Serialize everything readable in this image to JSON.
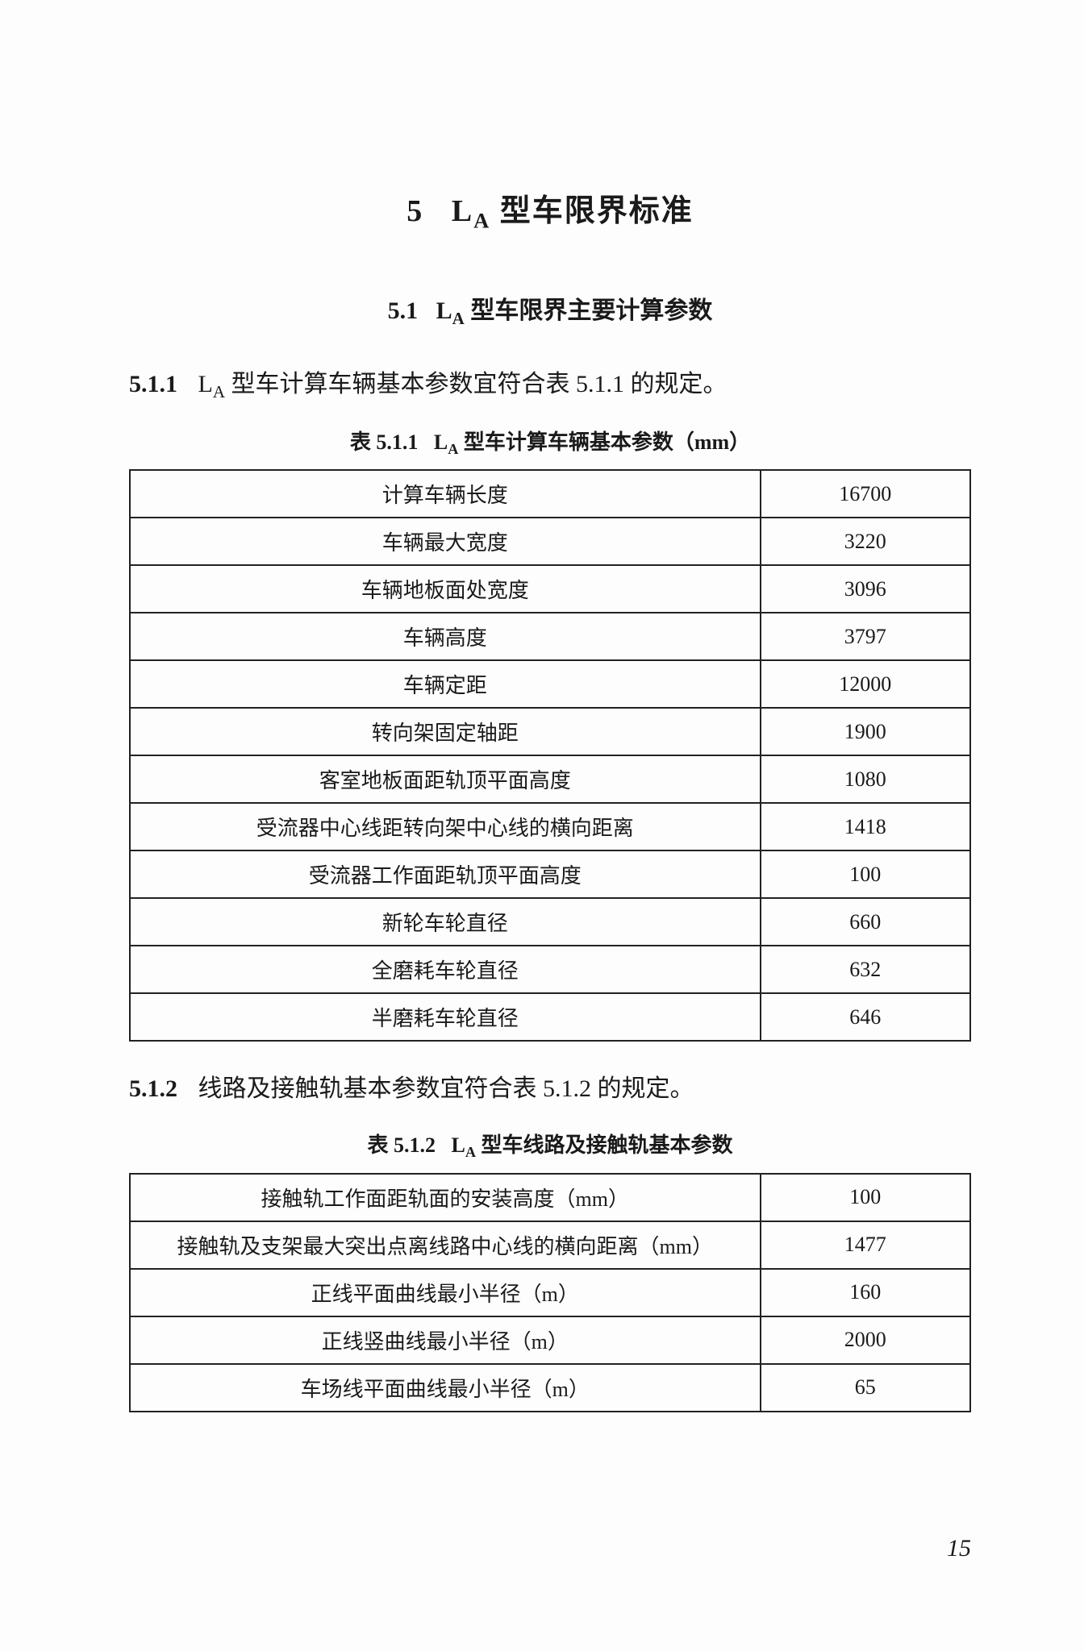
{
  "chapter": {
    "number": "5",
    "title": "L",
    "title_sub": "A",
    "title_rest": " 型车限界标准"
  },
  "section1": {
    "number": "5.1",
    "title_pre": "L",
    "title_sub": "A",
    "title_rest": " 型车限界主要计算参数"
  },
  "clause_5_1_1": {
    "num": "5.1.1",
    "text_pre": "L",
    "text_sub": "A",
    "text_rest": " 型车计算车辆基本参数宜符合表 5.1.1 的规定。"
  },
  "table_5_1_1": {
    "caption_num": "表 5.1.1",
    "caption_pre": "L",
    "caption_sub": "A",
    "caption_rest": " 型车计算车辆基本参数（mm）",
    "rows": [
      {
        "label": "计算车辆长度",
        "value": "16700"
      },
      {
        "label": "车辆最大宽度",
        "value": "3220"
      },
      {
        "label": "车辆地板面处宽度",
        "value": "3096"
      },
      {
        "label": "车辆高度",
        "value": "3797"
      },
      {
        "label": "车辆定距",
        "value": "12000"
      },
      {
        "label": "转向架固定轴距",
        "value": "1900"
      },
      {
        "label": "客室地板面距轨顶平面高度",
        "value": "1080"
      },
      {
        "label": "受流器中心线距转向架中心线的横向距离",
        "value": "1418"
      },
      {
        "label": "受流器工作面距轨顶平面高度",
        "value": "100"
      },
      {
        "label": "新轮车轮直径",
        "value": "660"
      },
      {
        "label": "全磨耗车轮直径",
        "value": "632"
      },
      {
        "label": "半磨耗车轮直径",
        "value": "646"
      }
    ]
  },
  "clause_5_1_2": {
    "num": "5.1.2",
    "text": "线路及接触轨基本参数宜符合表 5.1.2 的规定。"
  },
  "table_5_1_2": {
    "caption_num": "表 5.1.2",
    "caption_pre": "L",
    "caption_sub": "A",
    "caption_rest": " 型车线路及接触轨基本参数",
    "rows": [
      {
        "label": "接触轨工作面距轨面的安装高度（mm）",
        "value": "100"
      },
      {
        "label": "接触轨及支架最大突出点离线路中心线的横向距离（mm）",
        "value": "1477"
      },
      {
        "label": "正线平面曲线最小半径（m）",
        "value": "160"
      },
      {
        "label": "正线竖曲线最小半径（m）",
        "value": "2000"
      },
      {
        "label": "车场线平面曲线最小半径（m）",
        "value": "65"
      }
    ]
  },
  "page_number": "15",
  "style": {
    "text_color": "#1a1a1a",
    "background_color": "#fdfdfd",
    "border_color": "#222222",
    "chapter_fontsize": 38,
    "section_fontsize": 30,
    "clause_fontsize": 30,
    "caption_fontsize": 26,
    "cell_fontsize": 26,
    "col_label_width_pct": 75,
    "col_value_width_pct": 25
  }
}
